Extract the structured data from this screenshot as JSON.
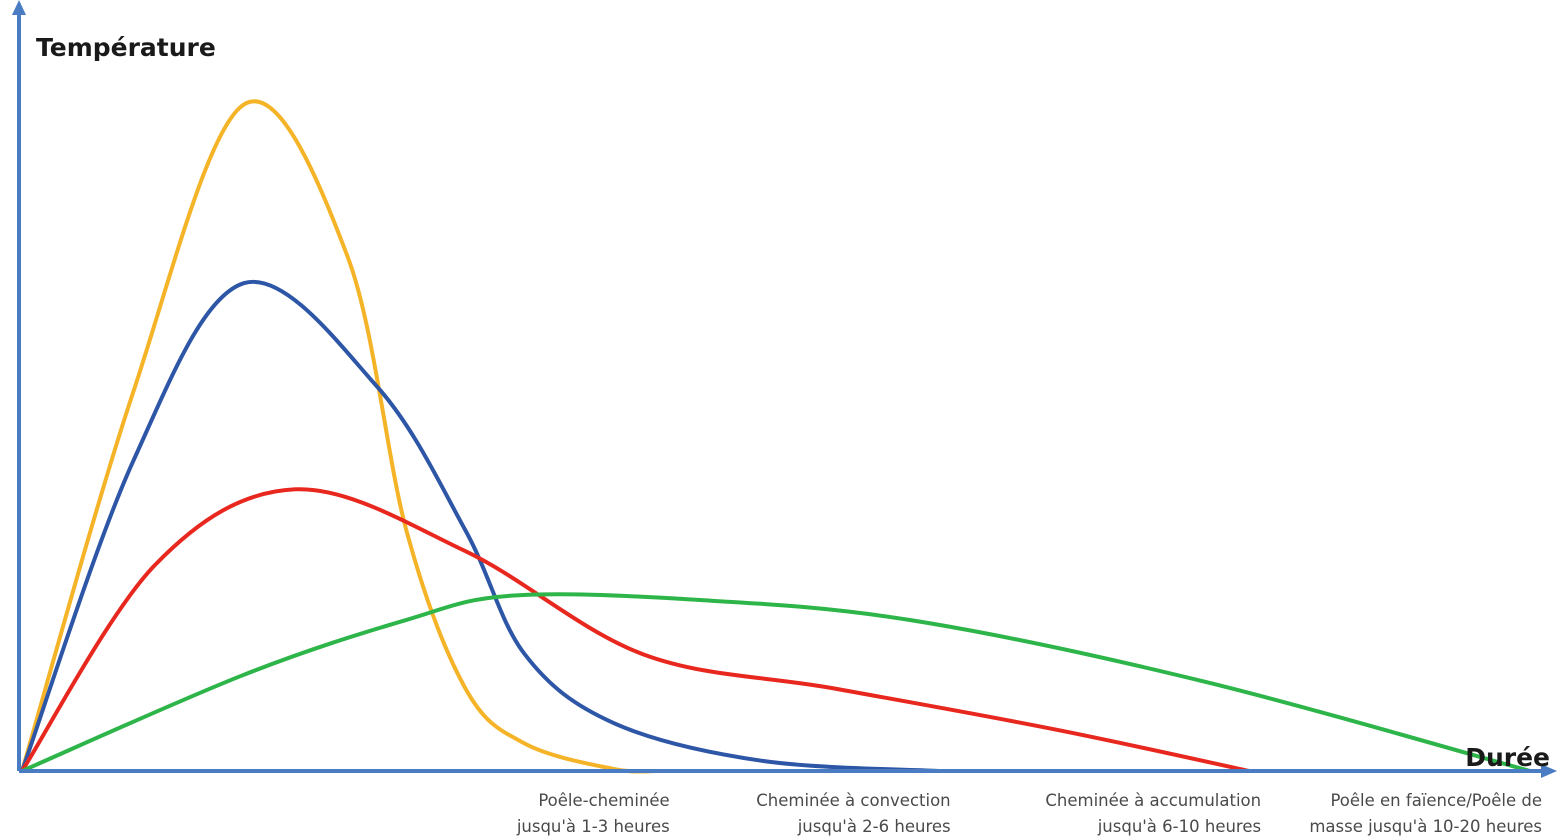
{
  "chart_data": {
    "type": "line",
    "ylabel": "Température",
    "xlabel": "Durée",
    "axis_color": "#4a7cc4",
    "grid": false,
    "series": [
      {
        "key": "poele-cheminee",
        "color": "#f5b428",
        "points": [
          [
            0,
            0
          ],
          [
            0.75,
            0.55
          ],
          [
            1.5,
            0.97
          ],
          [
            2.2,
            0.75
          ],
          [
            2.6,
            0.35
          ],
          [
            3.0,
            0.12
          ],
          [
            3.4,
            0.04
          ],
          [
            4.0,
            0.003
          ],
          [
            4.3,
            0.0
          ]
        ]
      },
      {
        "key": "cheminee-convection",
        "color": "#2e56a6",
        "points": [
          [
            0,
            0
          ],
          [
            0.75,
            0.45
          ],
          [
            1.5,
            0.71
          ],
          [
            2.4,
            0.56
          ],
          [
            3.0,
            0.35
          ],
          [
            3.4,
            0.17
          ],
          [
            4.0,
            0.07
          ],
          [
            5.0,
            0.015
          ],
          [
            6.2,
            0.0
          ]
        ]
      },
      {
        "key": "cheminee-accumulation",
        "color": "#e8281f",
        "points": [
          [
            0,
            0
          ],
          [
            0.9,
            0.3
          ],
          [
            1.85,
            0.41
          ],
          [
            3.0,
            0.32
          ],
          [
            4.2,
            0.17
          ],
          [
            5.5,
            0.12
          ],
          [
            7.0,
            0.06
          ],
          [
            8.3,
            0.0
          ]
        ]
      },
      {
        "key": "poele-faience",
        "color": "#2eb54a",
        "points": [
          [
            0,
            0
          ],
          [
            1.5,
            0.14
          ],
          [
            2.6,
            0.22
          ],
          [
            3.3,
            0.255
          ],
          [
            4.5,
            0.25
          ],
          [
            6.0,
            0.22
          ],
          [
            8.0,
            0.13
          ],
          [
            10.2,
            0.0
          ]
        ]
      }
    ],
    "xlim": [
      0,
      10.2
    ],
    "ylim": [
      0,
      1.0
    ],
    "categories": [
      {
        "line1": "Poêle-cheminée",
        "line2": "jusqu'à 1-3 heures",
        "x": 4.3
      },
      {
        "line1": "Cheminée à convection",
        "line2": "jusqu'à 2-6 heures",
        "x": 6.2
      },
      {
        "line1": "Cheminée à accumulation",
        "line2": "jusqu'à 6-10 heures",
        "x": 8.3
      },
      {
        "line1": "Poêle en faïence/Poêle de",
        "line2": "masse jusqu'à 10-20 heures",
        "x": 10.2
      }
    ]
  }
}
